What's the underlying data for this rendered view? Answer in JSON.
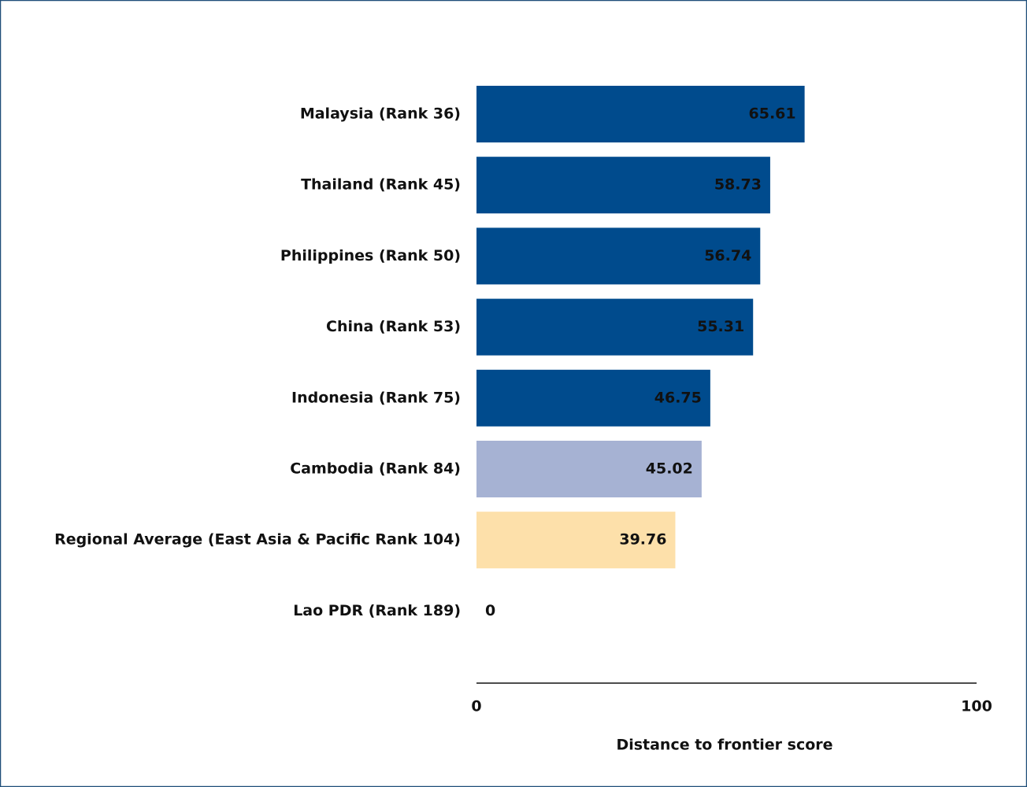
{
  "chart_data": {
    "type": "bar",
    "orientation": "horizontal",
    "x_label": "Distance to frontier score",
    "categories": [
      "Malaysia (Rank 36)",
      "Thailand (Rank 45)",
      "Philippines (Rank 50)",
      "China (Rank 53)",
      "Indonesia (Rank 75)",
      "Cambodia (Rank 84)",
      "Regional Average (East Asia & Pacific Rank 104)",
      "Lao PDR (Rank 189)"
    ],
    "values": [
      65.61,
      58.73,
      56.74,
      55.31,
      46.75,
      45.02,
      39.76,
      0
    ],
    "value_labels": [
      "65.61",
      "58.73",
      "56.74",
      "55.31",
      "46.75",
      "45.02",
      "39.76",
      "0"
    ],
    "colors": [
      "#004b8d",
      "#004b8d",
      "#004b8d",
      "#004b8d",
      "#004b8d",
      "#a6b2d3",
      "#fde0aa",
      "#004b8d"
    ],
    "xlim": [
      0,
      100
    ],
    "xticks": [
      0,
      100
    ],
    "grid": false
  }
}
